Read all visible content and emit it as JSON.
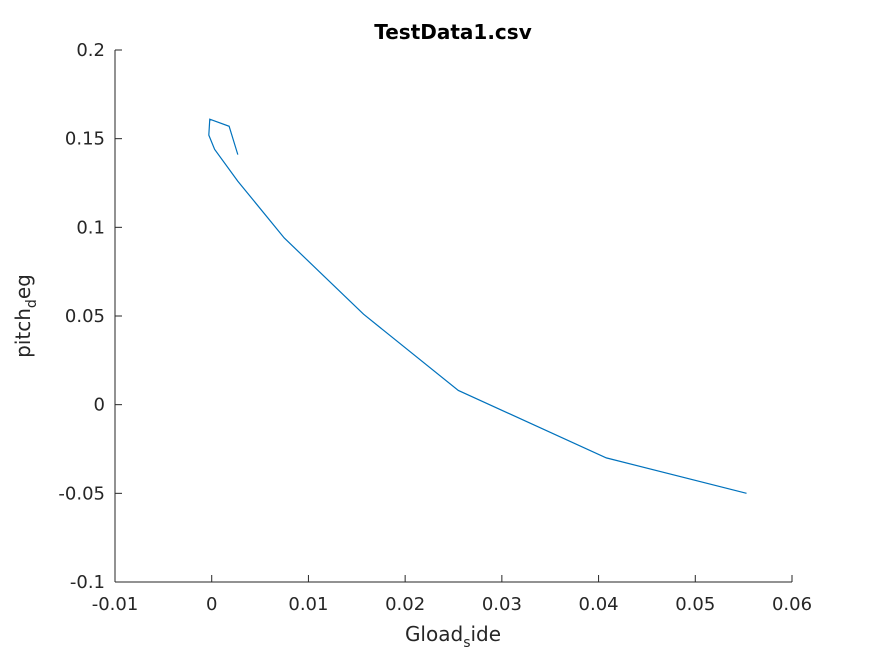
{
  "chart_data": {
    "type": "line",
    "title": "TestData1.csv",
    "xlabel": {
      "base": "Gload",
      "sub": "s",
      "rest": "ide"
    },
    "ylabel": {
      "base": "pitch",
      "sub": "d",
      "rest": "eg"
    },
    "xlim": [
      -0.01,
      0.06
    ],
    "ylim": [
      -0.1,
      0.2
    ],
    "xticks": [
      -0.01,
      0,
      0.01,
      0.02,
      0.03,
      0.04,
      0.05,
      0.06
    ],
    "xtick_labels": [
      "-0.01",
      "0",
      "0.01",
      "0.02",
      "0.03",
      "0.04",
      "0.05",
      "0.06"
    ],
    "yticks": [
      -0.1,
      -0.05,
      0,
      0.05,
      0.1,
      0.15,
      0.2
    ],
    "ytick_labels": [
      "-0.1",
      "-0.05",
      "0",
      "0.05",
      "0.1",
      "0.15",
      "0.2"
    ],
    "grid": false,
    "line_color": "#0072BD",
    "axis_color": "#262626",
    "series": [
      {
        "x": [
          0.0027,
          0.0018,
          -0.0002,
          -0.0003,
          0.0003,
          0.0027,
          0.0075,
          0.0157,
          0.0255,
          0.0408,
          0.0553
        ],
        "y": [
          0.141,
          0.157,
          0.161,
          0.152,
          0.144,
          0.126,
          0.094,
          0.051,
          0.008,
          -0.03,
          -0.05
        ]
      }
    ]
  }
}
